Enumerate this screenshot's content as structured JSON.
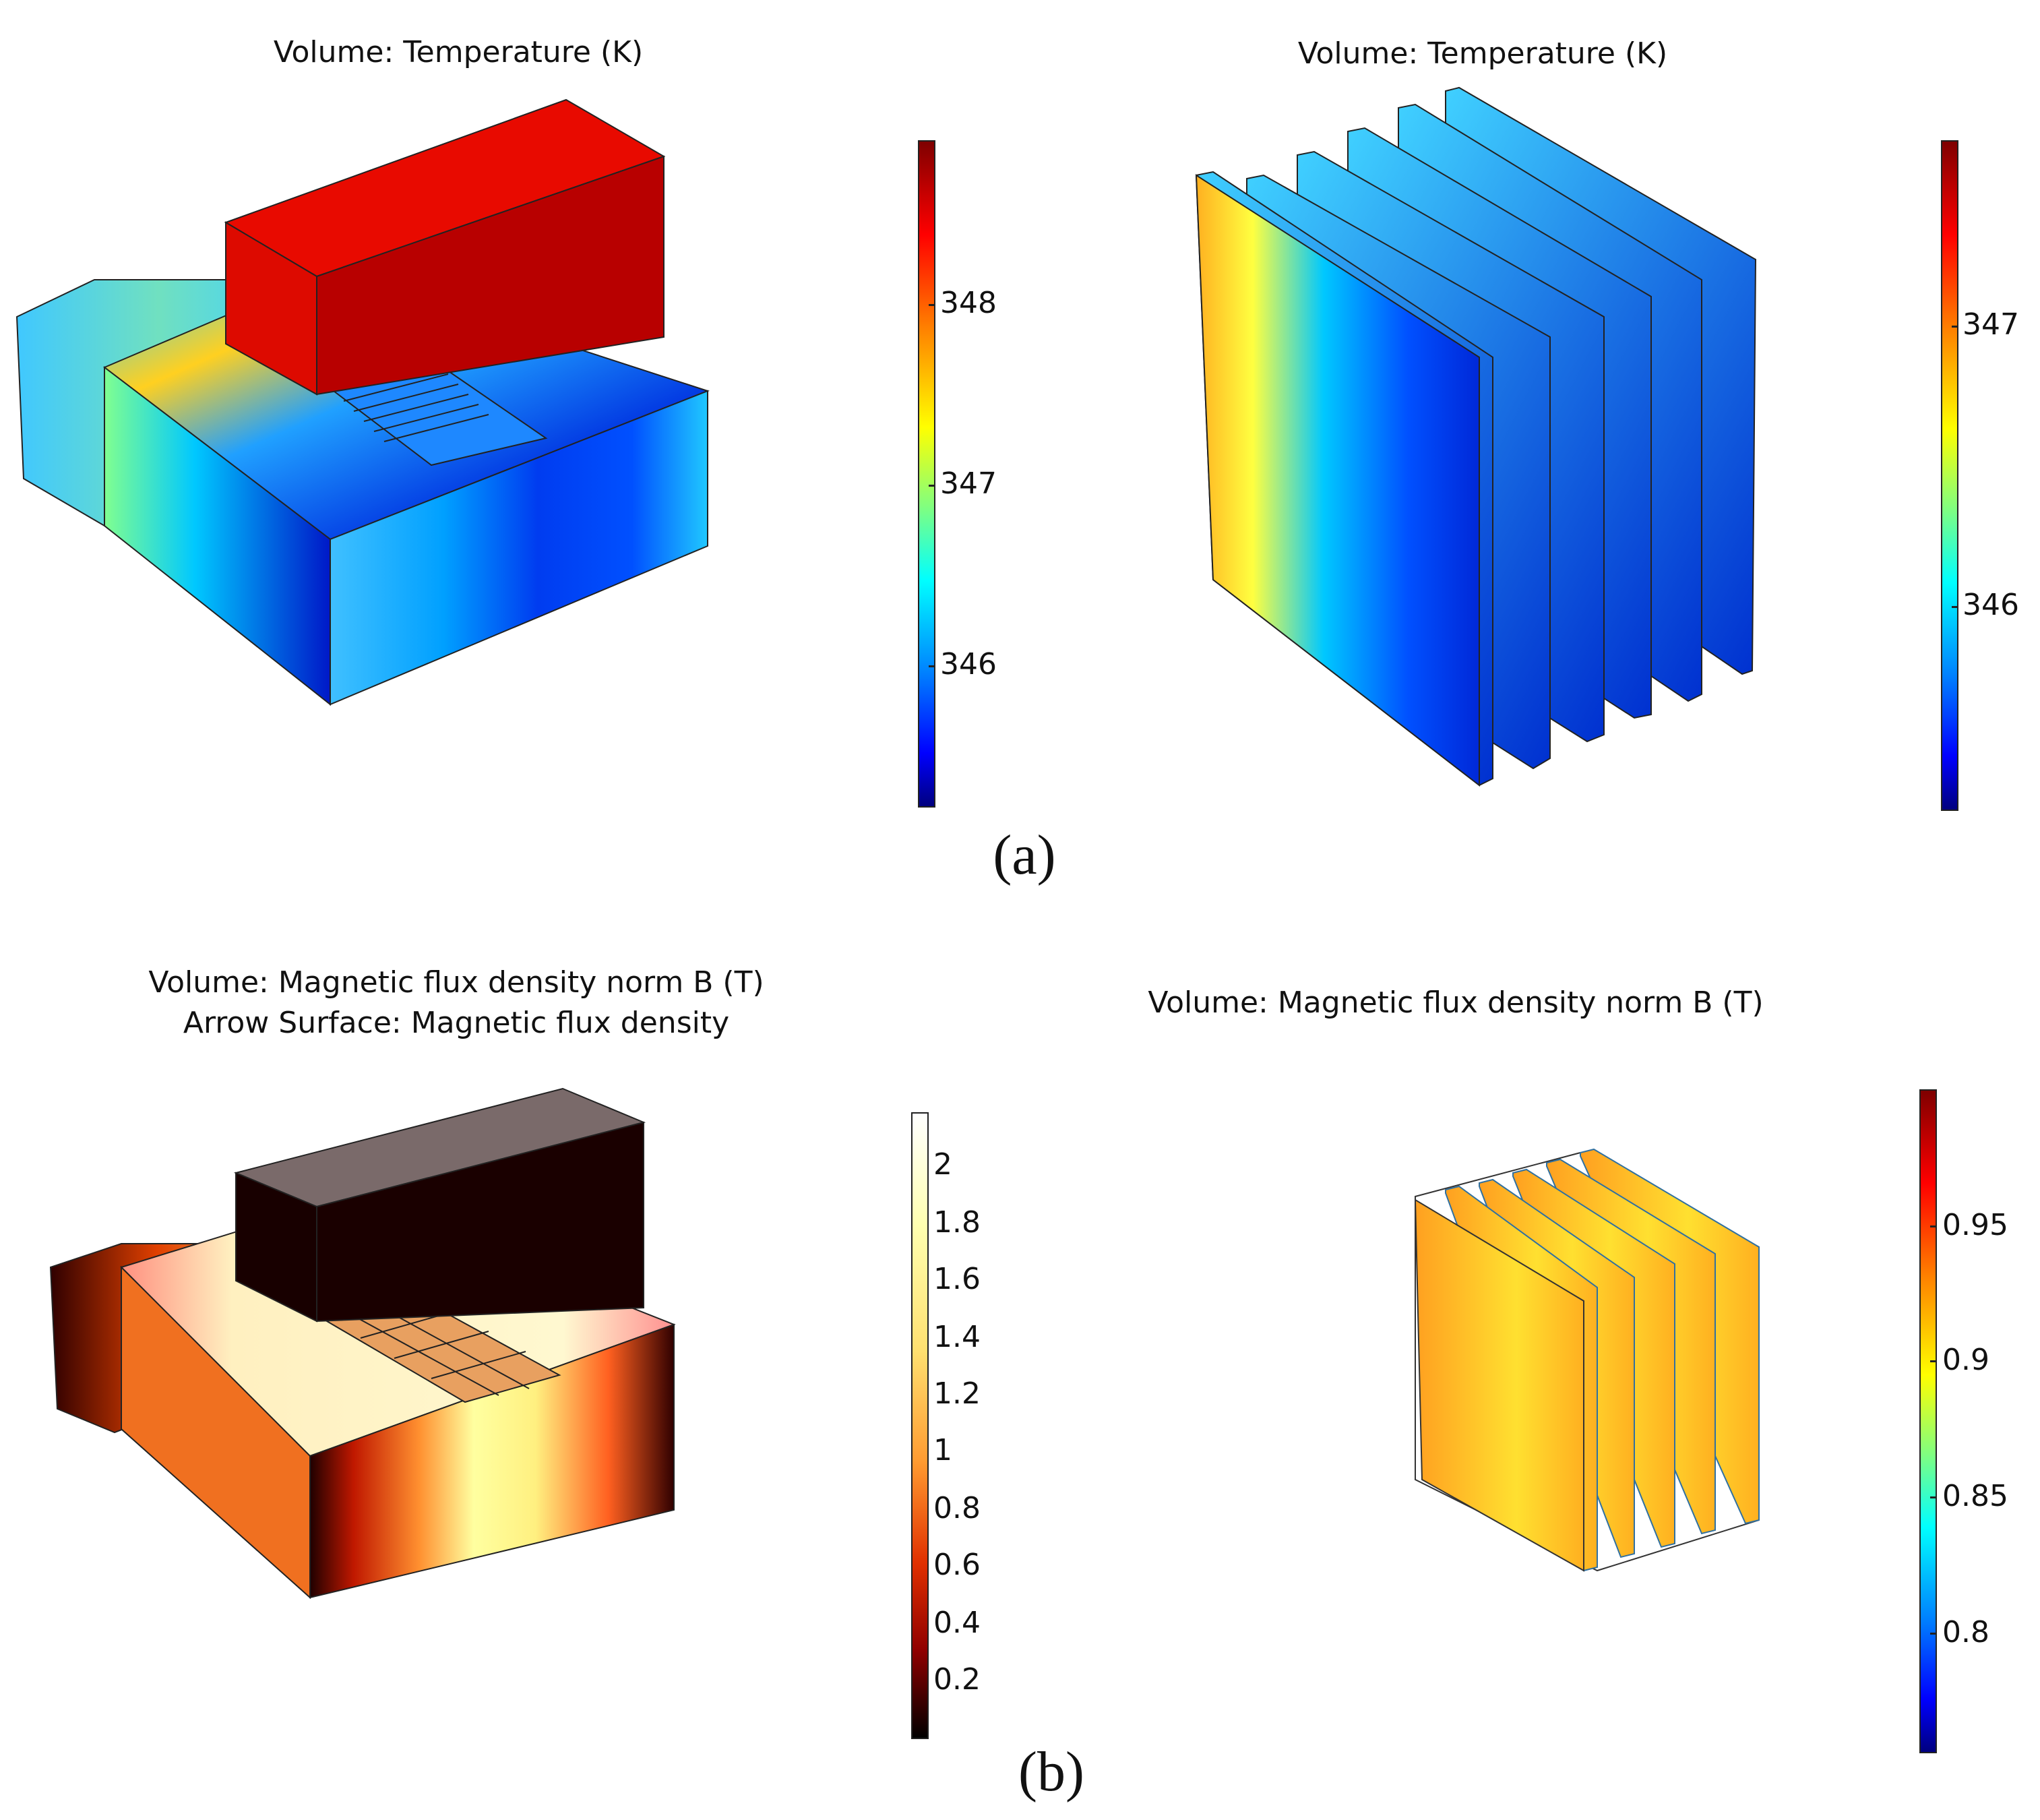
{
  "panels": [
    {
      "title": "Volume: Temperature (K)",
      "colorbar": {
        "ticks": [
          "348",
          "347",
          "346"
        ],
        "colormap": "jet"
      }
    },
    {
      "title": "Volume: Temperature (K)",
      "colorbar": {
        "ticks": [
          "347",
          "346"
        ],
        "colormap": "jet"
      }
    },
    {
      "title_line1": "Volume: Magnetic flux density norm B (T)",
      "title_line2": "Arrow Surface: Magnetic flux density",
      "colorbar": {
        "ticks": [
          "2",
          "1.8",
          "1.6",
          "1.4",
          "1.2",
          "1",
          "0.8",
          "0.6",
          "0.4",
          "0.2"
        ],
        "colormap": "heat"
      }
    },
    {
      "title": "Volume: Magnetic flux density norm B (T)",
      "colorbar": {
        "ticks": [
          "0.95",
          "0.9",
          "0.85",
          "0.8"
        ],
        "colormap": "jet"
      }
    }
  ],
  "captions": {
    "a": "(a)",
    "b": "(b)"
  }
}
